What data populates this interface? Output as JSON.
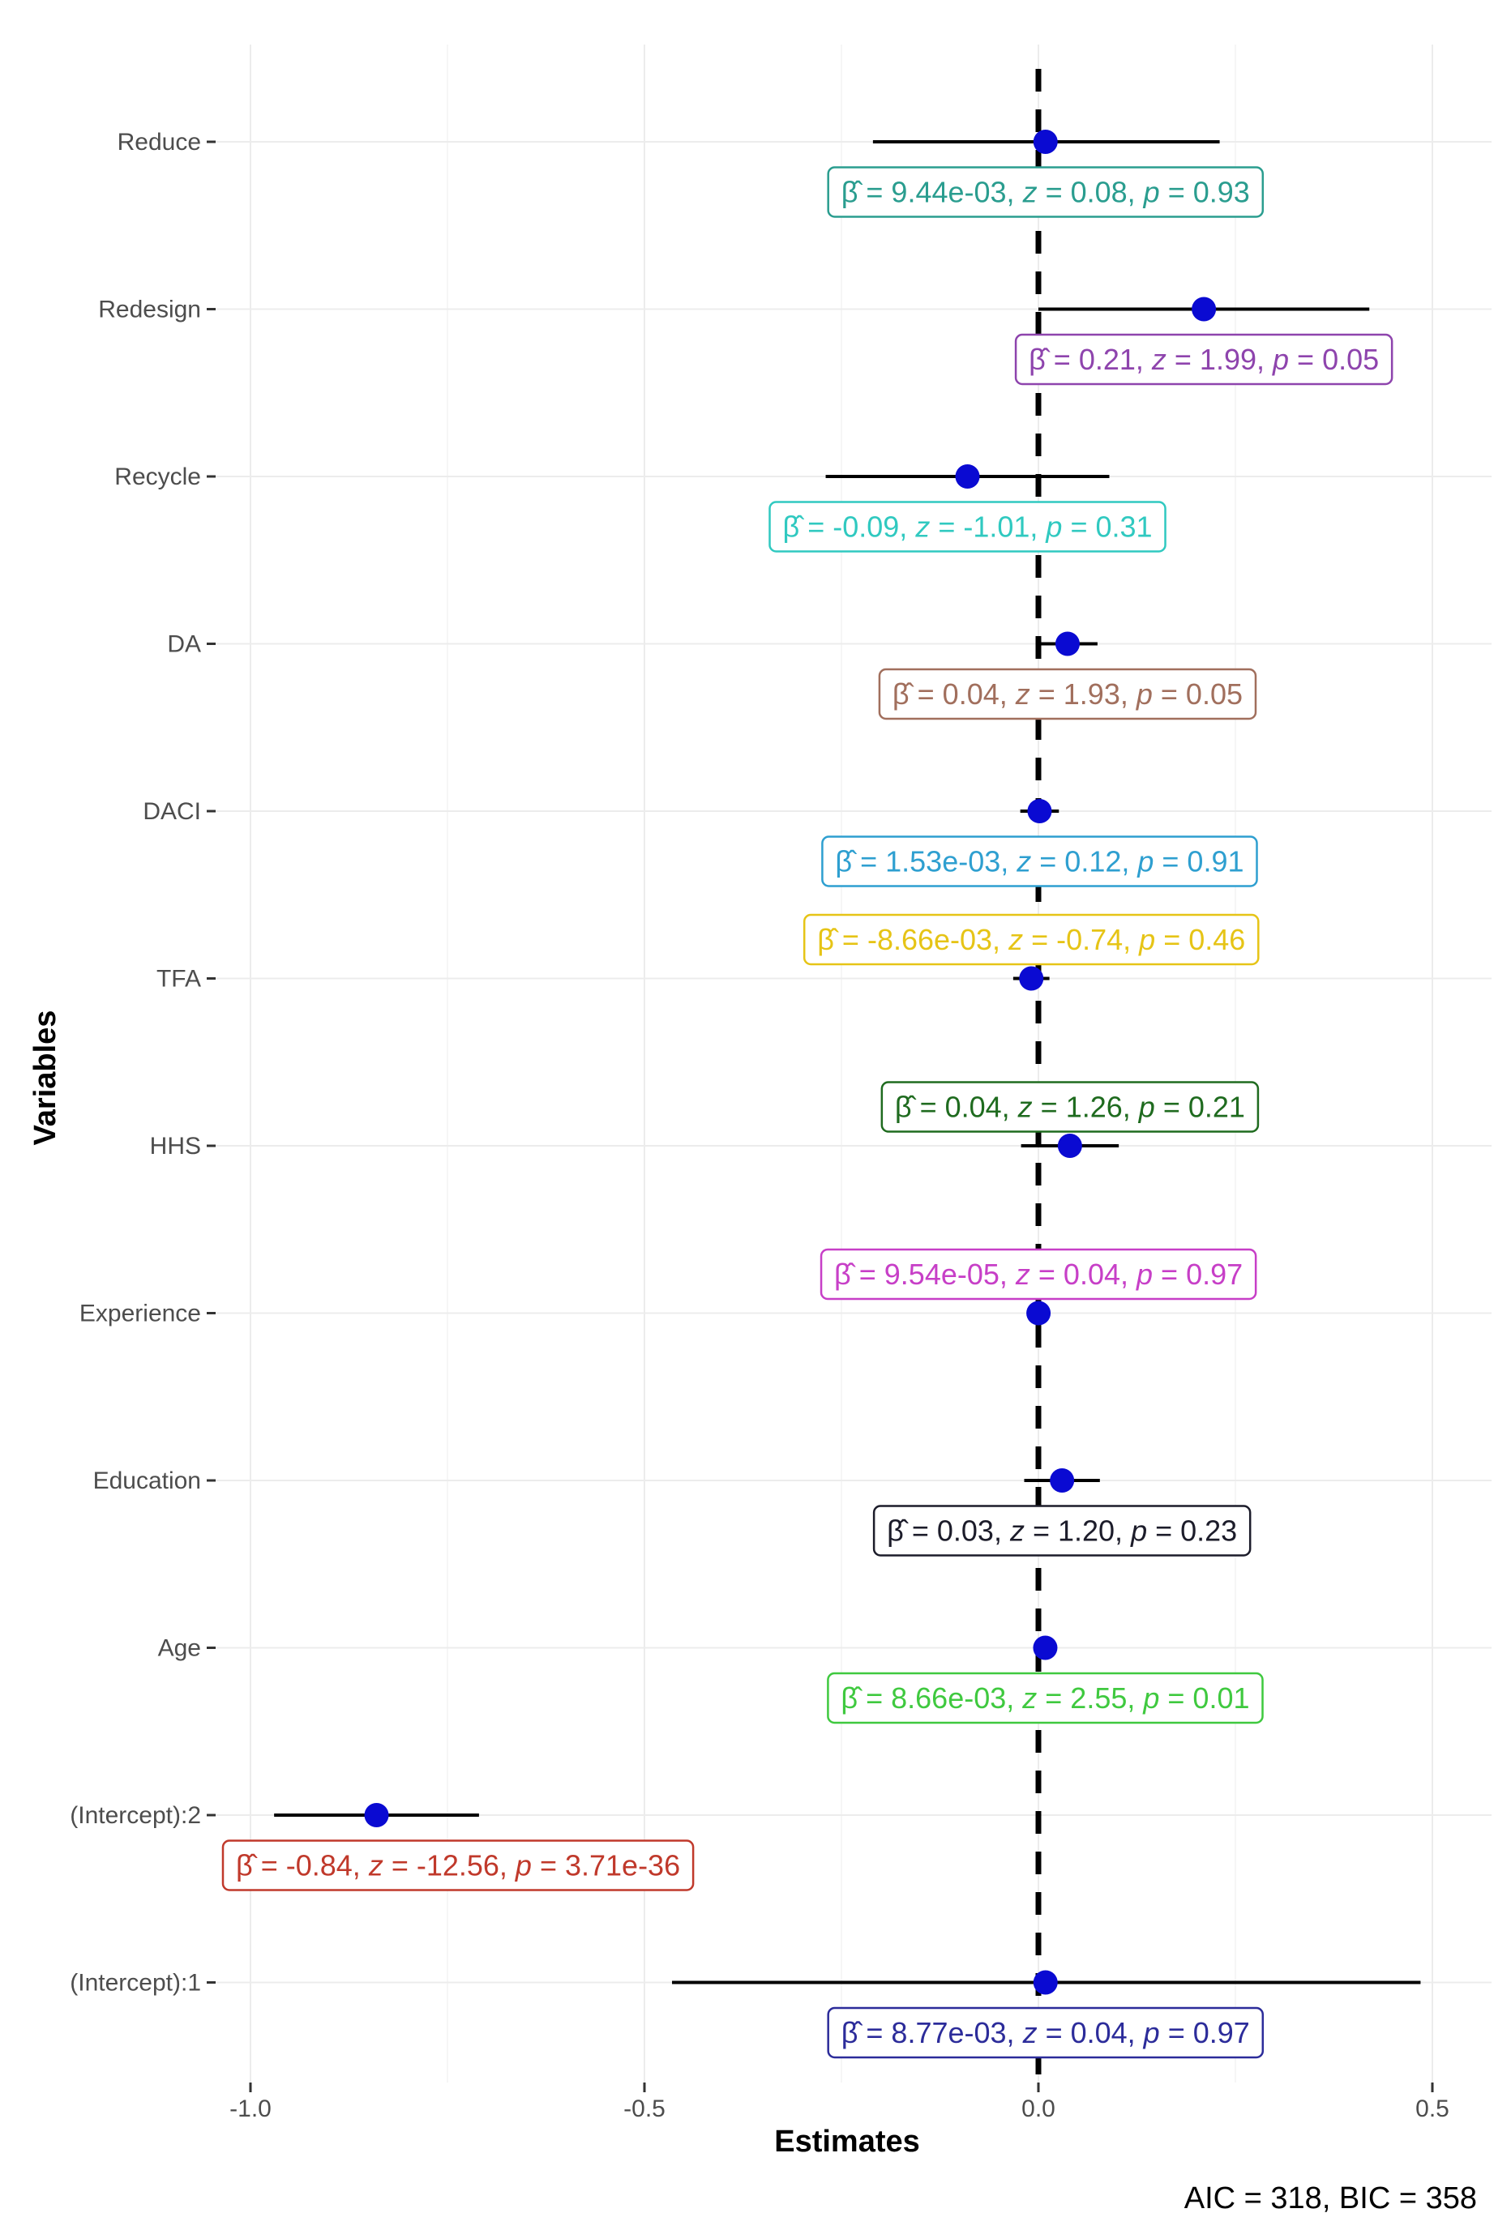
{
  "chart_data": {
    "type": "forest",
    "title": "",
    "xlabel": "Estimates",
    "ylabel": "Variables",
    "xlim": [
      -1.0,
      0.55
    ],
    "xticks": [
      -1.0,
      -0.5,
      0.0,
      0.5
    ],
    "xtick_labels": [
      "-1.0",
      "-0.5",
      "0.0",
      "0.5"
    ],
    "reference_line": 0,
    "caption": "AIC = 318, BIC = 358",
    "marker_color": "#0a0ad2",
    "rows": [
      {
        "name": "Reduce",
        "estimate": 0.009,
        "lo": -0.21,
        "hi": 0.23,
        "beta": "9.44e-03",
        "z": "0.08",
        "p": "0.93",
        "color": "#2a9d8f",
        "label_side": "below"
      },
      {
        "name": "Redesign",
        "estimate": 0.21,
        "lo": 0.0,
        "hi": 0.42,
        "beta": "0.21",
        "z": "1.99",
        "p": "0.05",
        "color": "#8e44ad",
        "label_side": "below"
      },
      {
        "name": "Recycle",
        "estimate": -0.09,
        "lo": -0.27,
        "hi": 0.09,
        "beta": "-0.09",
        "z": "-1.01",
        "p": "0.31",
        "color": "#30c9c0",
        "label_side": "below"
      },
      {
        "name": "DA",
        "estimate": 0.037,
        "lo": 0.0,
        "hi": 0.075,
        "beta": "0.04",
        "z": "1.93",
        "p": "0.05",
        "color": "#a16f5d",
        "label_side": "below"
      },
      {
        "name": "DACI",
        "estimate": 0.0015,
        "lo": -0.023,
        "hi": 0.026,
        "beta": "1.53e-03",
        "z": "0.12",
        "p": "0.91",
        "color": "#2e9fd0",
        "label_side": "below"
      },
      {
        "name": "TFA",
        "estimate": -0.009,
        "lo": -0.032,
        "hi": 0.014,
        "beta": "-8.66e-03",
        "z": "-0.74",
        "p": "0.46",
        "color": "#e6c416",
        "label_side": "above"
      },
      {
        "name": "HHS",
        "estimate": 0.04,
        "lo": -0.022,
        "hi": 0.102,
        "beta": "0.04",
        "z": "1.26",
        "p": "0.21",
        "color": "#1f6b1f",
        "label_side": "above"
      },
      {
        "name": "Experience",
        "estimate": 0.0001,
        "lo": -0.005,
        "hi": 0.005,
        "beta": "9.54e-05",
        "z": "0.04",
        "p": "0.97",
        "color": "#c73fc7",
        "label_side": "above"
      },
      {
        "name": "Education",
        "estimate": 0.03,
        "lo": -0.018,
        "hi": 0.078,
        "beta": "0.03",
        "z": "1.20",
        "p": "0.23",
        "color": "#1c1c2a",
        "label_side": "below"
      },
      {
        "name": "Age",
        "estimate": 0.0087,
        "lo": 0.002,
        "hi": 0.015,
        "beta": "8.66e-03",
        "z": "2.55",
        "p": "0.01",
        "color": "#3fc93f",
        "label_side": "below"
      },
      {
        "name": "(Intercept):2",
        "estimate": -0.84,
        "lo": -0.97,
        "hi": -0.71,
        "beta": "-0.84",
        "z": "-12.56",
        "p": "3.71e-36",
        "color": "#c0392b",
        "label_side": "below"
      },
      {
        "name": "(Intercept):1",
        "estimate": 0.009,
        "lo": -0.465,
        "hi": 0.485,
        "beta": "8.77e-03",
        "z": "0.04",
        "p": "0.97",
        "color": "#2c2c9a",
        "label_side": "below"
      }
    ]
  }
}
